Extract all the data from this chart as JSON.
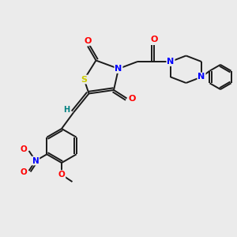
{
  "bg_color": "#ebebeb",
  "atom_colors": {
    "S": "#cccc00",
    "N": "#0000ff",
    "O": "#ff0000",
    "C": "#000000",
    "H": "#008080"
  },
  "bond_color": "#1a1a1a",
  "lw": 1.4,
  "figsize": [
    3.0,
    3.0
  ],
  "dpi": 100
}
